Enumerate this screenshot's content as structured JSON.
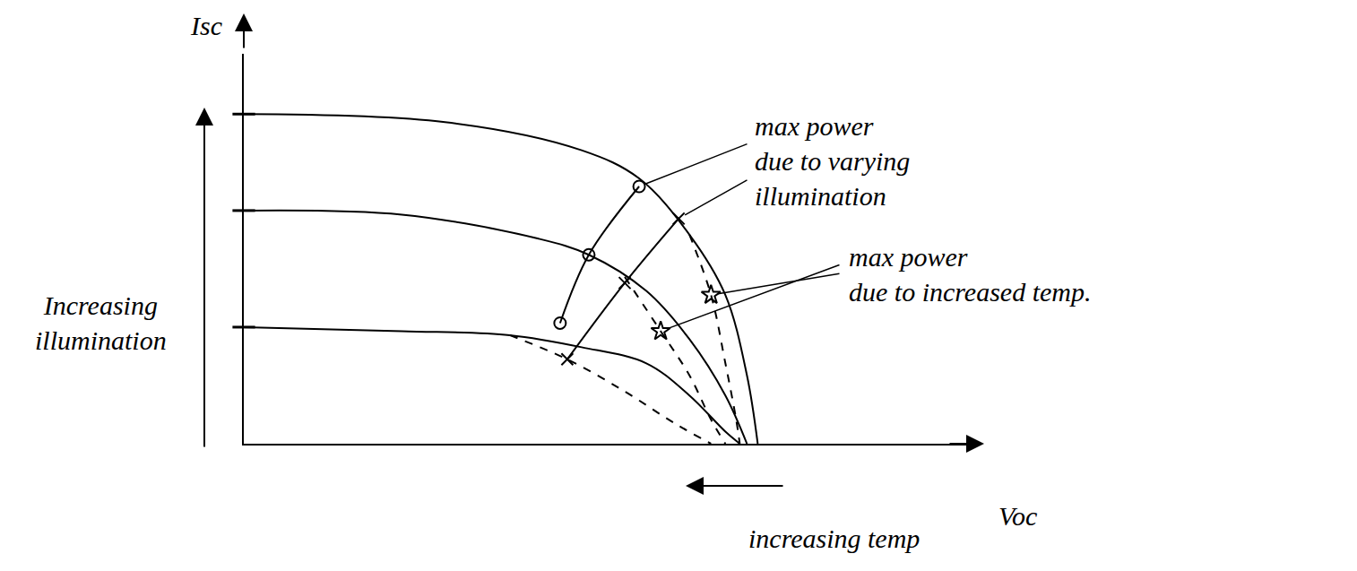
{
  "chart_data": {
    "type": "line",
    "x_label": "Voc",
    "y_label": "Isc",
    "xlim": [
      0,
      10.2
    ],
    "ylim": [
      0,
      9.7
    ],
    "tick_labels": false,
    "grid": false,
    "series": [
      {
        "color": "#000000",
        "line_style": "solid",
        "marker": "none",
        "x": [
          0,
          2.8,
          4.7,
          5.5,
          6.2,
          6.7,
          7.0,
          7.15
        ],
        "values": [
          8.2,
          8.0,
          7.3,
          6.6,
          5.2,
          3.7,
          1.7,
          0
        ]
      },
      {
        "color": "#000000",
        "line_style": "solid",
        "marker": "none",
        "x": [
          0,
          2.2,
          4.1,
          4.8,
          5.6,
          6.2,
          6.7,
          7.0
        ],
        "values": [
          5.8,
          5.7,
          5.1,
          4.7,
          3.8,
          2.6,
          1.2,
          0
        ]
      },
      {
        "color": "#000000",
        "line_style": "solid",
        "marker": "none",
        "x": [
          0,
          2.2,
          3.7,
          4.7,
          5.6,
          6.2,
          6.7,
          6.9
        ],
        "values": [
          2.9,
          2.8,
          2.7,
          2.4,
          2.0,
          1.2,
          0.3,
          0
        ]
      },
      {
        "color": "#000000",
        "line_style": "dash",
        "marker": "none",
        "x": [
          6.2,
          6.5,
          6.7,
          6.85,
          6.9
        ],
        "values": [
          5.2,
          3.7,
          2.0,
          0.6,
          0
        ]
      },
      {
        "color": "#000000",
        "line_style": "dash",
        "marker": "none",
        "x": [
          5.3,
          5.8,
          6.2,
          6.5,
          6.7
        ],
        "values": [
          4.15,
          2.8,
          1.7,
          0.6,
          0
        ]
      },
      {
        "color": "#000000",
        "line_style": "dash",
        "marker": "none",
        "x": [
          3.7,
          4.5,
          5.3,
          6.0,
          6.5
        ],
        "values": [
          2.7,
          2.1,
          1.3,
          0.5,
          0
        ]
      },
      {
        "color": "#000000",
        "line_style": "solid",
        "marker": "circle-open",
        "x": [
          4.4,
          4.8,
          5.5
        ],
        "values": [
          3.0,
          4.7,
          6.4
        ]
      },
      {
        "color": "#000000",
        "line_style": "solid",
        "marker": "x",
        "x": [
          4.5,
          5.3,
          6.05
        ],
        "values": [
          2.1,
          4.0,
          5.6
        ]
      },
      {
        "color": "#000000",
        "line_style": "none",
        "marker": "star",
        "x": [
          5.8,
          6.5
        ],
        "values": [
          2.8,
          3.7
        ]
      }
    ],
    "annotations": [
      {
        "text": [
          "max power",
          "due to varying",
          "illumination"
        ]
      },
      {
        "text": [
          "max power",
          "due to increased temp."
        ]
      },
      {
        "text": [
          "Increasing",
          "illumination"
        ]
      },
      {
        "text": [
          "increasing temp"
        ]
      }
    ]
  }
}
